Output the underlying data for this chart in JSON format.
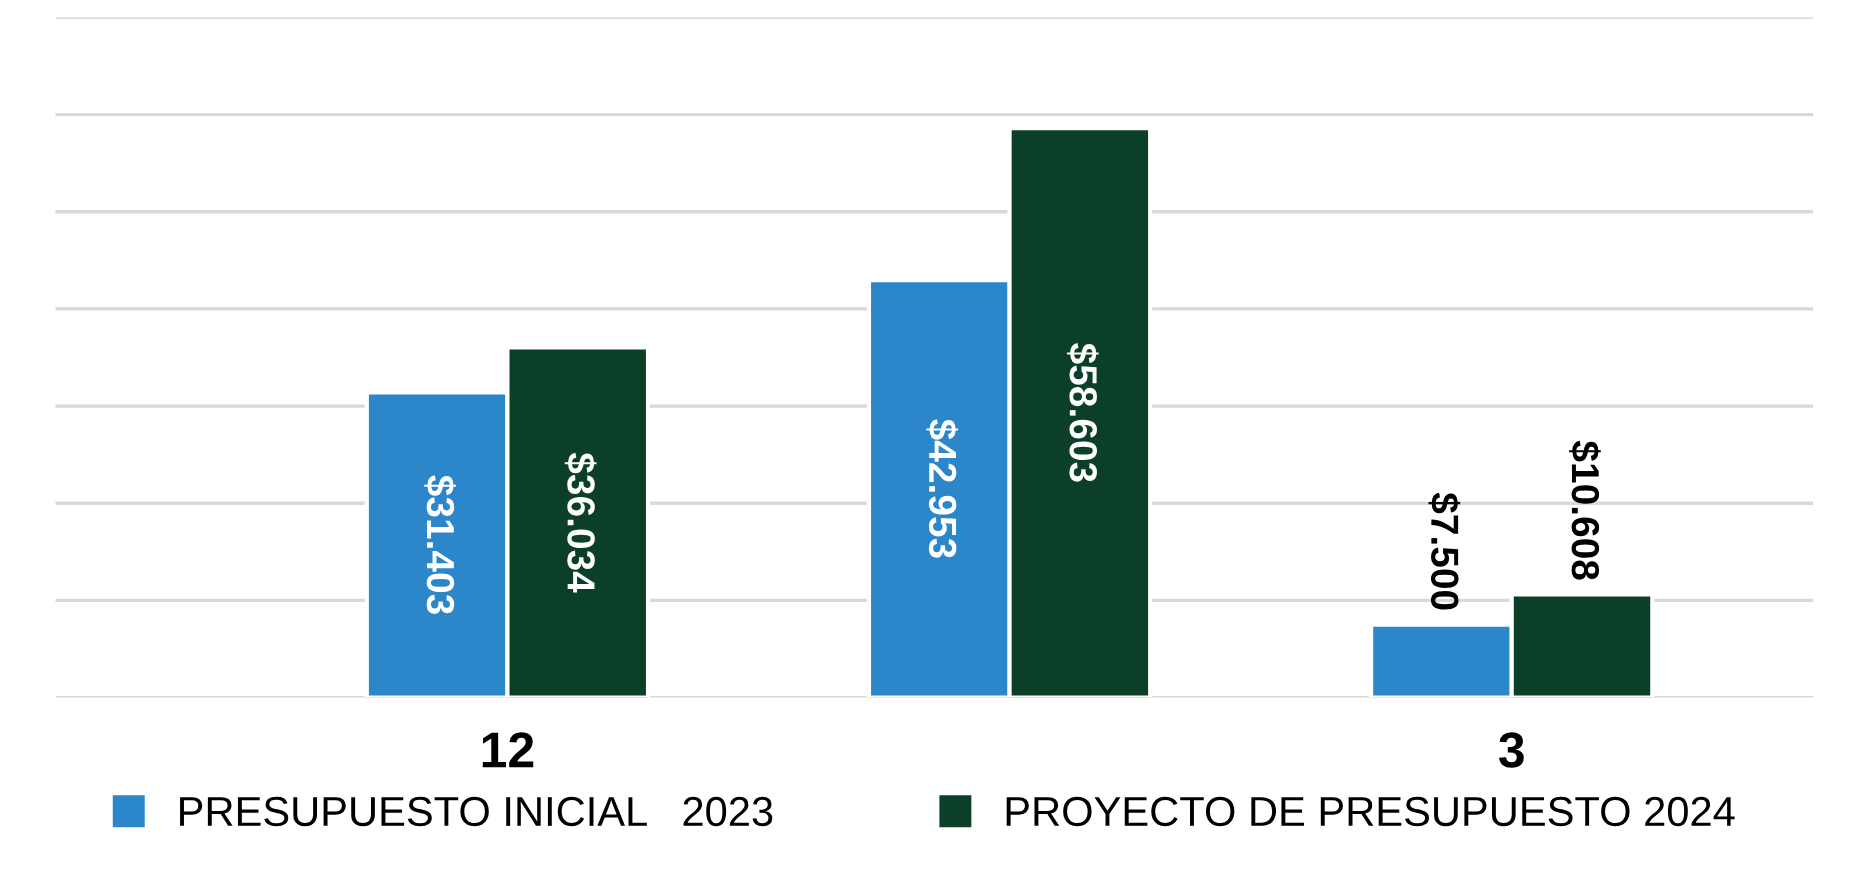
{
  "chart_data": {
    "type": "bar",
    "categories": [
      "12",
      null,
      "3"
    ],
    "series": [
      {
        "name": "PRESUPUESTO INICIAL   2023",
        "color": "#2b87ca",
        "values": [
          31.403,
          42.953,
          7.5
        ],
        "value_labels": [
          "$31.403",
          "$42.953",
          "$7.500"
        ]
      },
      {
        "name": "PROYECTO DE PRESUPUESTO 2024",
        "color": "#0c3f28",
        "values": [
          36.034,
          58.603,
          10.608
        ],
        "value_labels": [
          "$36.034",
          "$58.603",
          "$10.608"
        ]
      }
    ],
    "ylim": [
      0,
      70
    ],
    "yticks": [
      {
        "value": 0,
        "label": null
      },
      {
        "value": 10,
        "label": null
      },
      {
        "value": 20,
        "label": null
      },
      {
        "value": 30,
        "label": null
      },
      {
        "value": 40,
        "label": null
      },
      {
        "value": 50,
        "label": null
      },
      {
        "value": 60,
        "label": null
      },
      {
        "value": 70,
        "label": null
      }
    ],
    "tick_labels": "x",
    "grid": "y",
    "legend": "bottom"
  }
}
